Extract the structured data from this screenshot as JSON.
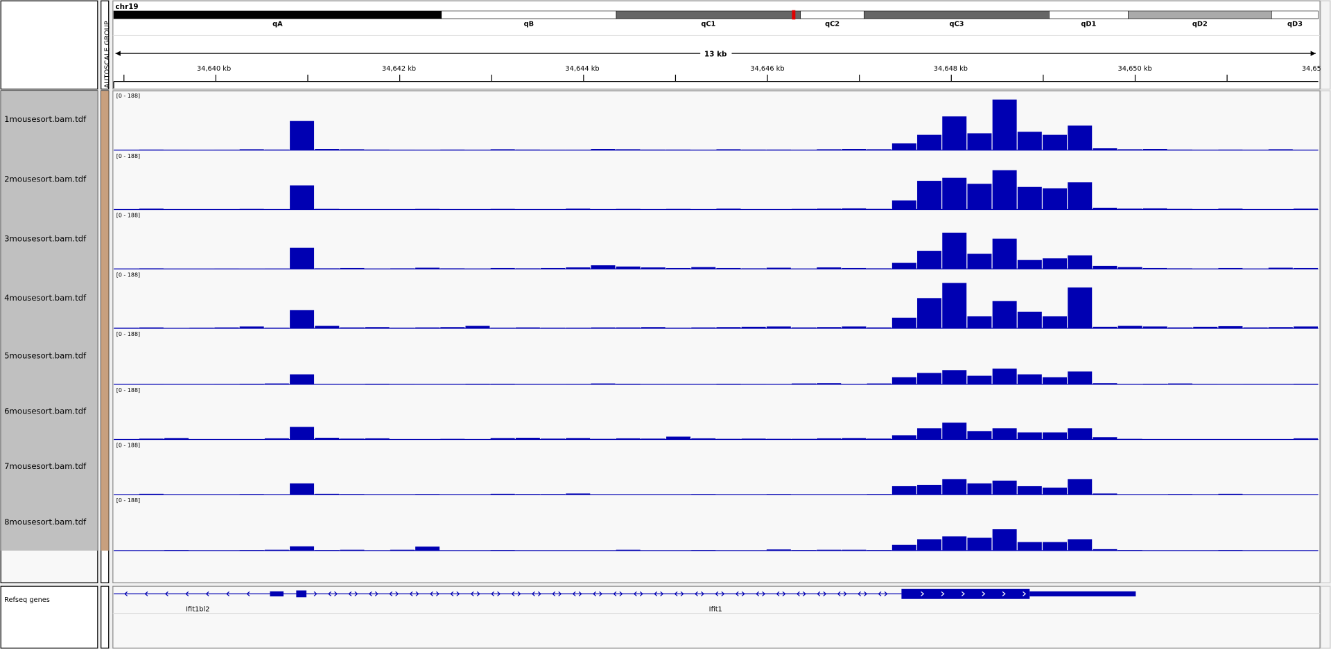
{
  "chromosome": "chr19",
  "ideogram": {
    "bands": [
      "qA",
      "qB",
      "qC1",
      "qC2",
      "qC3",
      "qD1",
      "qD2",
      "qD3"
    ]
  },
  "ruler": {
    "span": "13 kb",
    "ticks": [
      "34,640 kb",
      "34,642 kb",
      "34,644 kb",
      "34,646 kb",
      "34,648 kb",
      "34,650 kb",
      "34,65"
    ]
  },
  "autoscale_label": "AUTOSCALE GROUP",
  "tracks": [
    {
      "name": "1mousesort.bam.tdf",
      "range_label": "[0 - 188]",
      "ylim": [
        0,
        188
      ],
      "values": [
        0,
        2,
        1,
        0,
        1,
        3,
        2,
        95,
        4,
        3,
        2,
        1,
        0,
        2,
        1,
        3,
        2,
        1,
        1,
        4,
        3,
        2,
        2,
        1,
        3,
        2,
        2,
        1,
        3,
        4,
        3,
        22,
        50,
        110,
        55,
        165,
        60,
        50,
        80,
        6,
        3,
        4,
        2,
        1,
        2,
        1,
        3,
        0
      ]
    },
    {
      "name": "2mousesort.bam.tdf",
      "range_label": "[0 - 188]",
      "ylim": [
        0,
        188
      ],
      "values": [
        0,
        3,
        0,
        0,
        1,
        2,
        1,
        80,
        2,
        1,
        0,
        1,
        2,
        1,
        1,
        2,
        1,
        0,
        3,
        1,
        2,
        1,
        2,
        0,
        3,
        1,
        0,
        2,
        3,
        4,
        2,
        30,
        95,
        105,
        85,
        130,
        75,
        70,
        90,
        6,
        3,
        4,
        2,
        1,
        3,
        1,
        0,
        3
      ]
    },
    {
      "name": "3mousesort.bam.tdf",
      "range_label": "[0 - 188]",
      "ylim": [
        0,
        188
      ],
      "values": [
        1,
        2,
        0,
        0,
        1,
        0,
        1,
        70,
        2,
        3,
        1,
        2,
        4,
        2,
        1,
        3,
        2,
        3,
        5,
        12,
        8,
        5,
        3,
        6,
        3,
        2,
        4,
        1,
        5,
        3,
        2,
        20,
        60,
        120,
        50,
        100,
        30,
        35,
        45,
        10,
        6,
        3,
        2,
        1,
        3,
        1,
        4,
        3
      ]
    },
    {
      "name": "4mousesort.bam.tdf",
      "range_label": "[0 - 188]",
      "ylim": [
        0,
        188
      ],
      "values": [
        2,
        3,
        1,
        2,
        3,
        6,
        2,
        60,
        8,
        3,
        4,
        2,
        3,
        4,
        8,
        2,
        3,
        2,
        2,
        3,
        3,
        4,
        2,
        3,
        4,
        5,
        6,
        3,
        4,
        6,
        3,
        35,
        100,
        150,
        40,
        90,
        55,
        40,
        135,
        5,
        8,
        6,
        3,
        5,
        7,
        3,
        4,
        6
      ]
    },
    {
      "name": "5mousesort.bam.tdf",
      "range_label": "[0 - 188]",
      "ylim": [
        0,
        188
      ],
      "values": [
        0,
        1,
        0,
        0,
        1,
        2,
        3,
        35,
        1,
        1,
        2,
        1,
        0,
        1,
        2,
        2,
        1,
        0,
        1,
        3,
        2,
        1,
        1,
        0,
        2,
        1,
        0,
        3,
        4,
        1,
        3,
        25,
        40,
        50,
        30,
        55,
        35,
        25,
        45,
        4,
        1,
        2,
        3,
        1,
        0,
        1,
        1,
        2
      ]
    },
    {
      "name": "6mousesort.bam.tdf",
      "range_label": "[0 - 188]",
      "ylim": [
        0,
        188
      ],
      "values": [
        1,
        3,
        5,
        0,
        1,
        1,
        4,
        45,
        6,
        3,
        4,
        1,
        0,
        2,
        1,
        5,
        6,
        3,
        5,
        2,
        4,
        3,
        10,
        4,
        2,
        3,
        2,
        2,
        4,
        5,
        3,
        15,
        40,
        60,
        30,
        40,
        25,
        25,
        40,
        8,
        2,
        1,
        1,
        0,
        1,
        0,
        1,
        4
      ]
    },
    {
      "name": "7mousesort.bam.tdf",
      "range_label": "[0 - 188]",
      "ylim": [
        0,
        188
      ],
      "values": [
        1,
        3,
        1,
        0,
        1,
        2,
        1,
        40,
        3,
        2,
        1,
        0,
        2,
        1,
        1,
        3,
        2,
        2,
        4,
        1,
        1,
        1,
        0,
        2,
        1,
        0,
        2,
        1,
        1,
        0,
        2,
        30,
        35,
        55,
        40,
        50,
        30,
        25,
        55,
        4,
        1,
        0,
        2,
        1,
        3,
        0,
        0,
        1
      ]
    },
    {
      "name": "8mousesort.bam.tdf",
      "range_label": "[0 - 188]",
      "ylim": [
        0,
        188
      ],
      "values": [
        0,
        1,
        2,
        0,
        1,
        2,
        3,
        15,
        2,
        3,
        1,
        3,
        14,
        1,
        0,
        2,
        1,
        0,
        1,
        1,
        3,
        1,
        0,
        2,
        1,
        0,
        4,
        2,
        3,
        3,
        2,
        20,
        40,
        50,
        45,
        75,
        30,
        30,
        40,
        5,
        2,
        1,
        0,
        1,
        2,
        1,
        0,
        0
      ]
    }
  ],
  "genes": {
    "track_name": "Refseq genes",
    "labels": [
      "Ifit1bl2",
      "Ifit1"
    ]
  }
}
